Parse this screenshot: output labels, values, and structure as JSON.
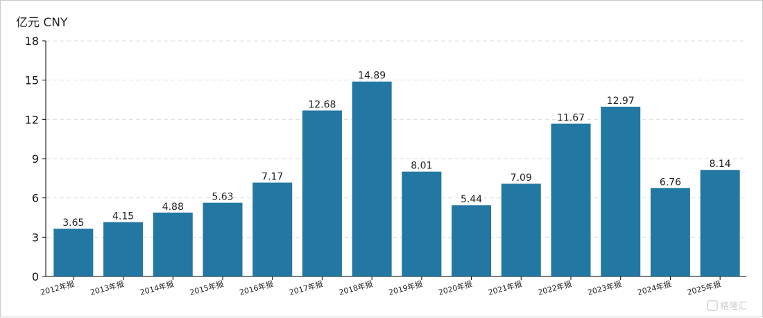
{
  "chart_data": {
    "type": "bar",
    "unit_label": "亿元  CNY",
    "categories": [
      "2012年报",
      "2013年报",
      "2014年报",
      "2015年报",
      "2016年报",
      "2017年报",
      "2018年报",
      "2019年报",
      "2020年报",
      "2021年报",
      "2022年报",
      "2023年报",
      "2024年报",
      "2025年报"
    ],
    "values": [
      3.65,
      4.15,
      4.88,
      5.63,
      7.17,
      12.68,
      14.89,
      8.01,
      5.44,
      7.09,
      11.67,
      12.97,
      6.76,
      8.14
    ],
    "value_labels": [
      "3.65",
      "4.15",
      "4.88",
      "5.63",
      "7.17",
      "12.68",
      "14.89",
      "8.01",
      "5.44",
      "7.09",
      "11.67",
      "12.97",
      "6.76",
      "8.14"
    ],
    "yticks": [
      "0",
      "3",
      "6",
      "9",
      "12",
      "15",
      "18"
    ],
    "ylim": [
      0,
      18
    ],
    "grid": true,
    "bar_color": "#2277a3"
  },
  "watermark": "格隆汇"
}
